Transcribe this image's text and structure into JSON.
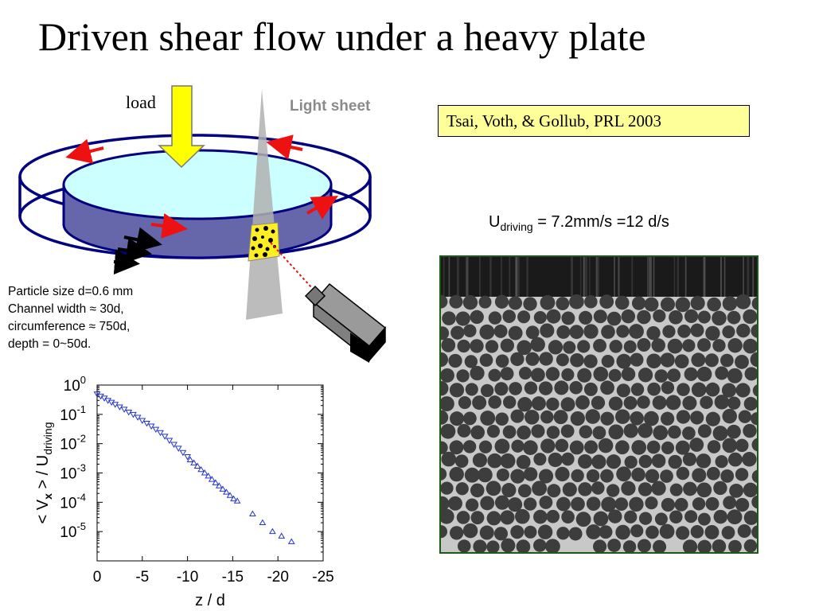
{
  "title": "Driven shear flow under a heavy plate",
  "apparatus": {
    "load_label": "load",
    "light_sheet_label": "Light sheet",
    "colors": {
      "plate": "#ccffff",
      "channel": "#6666aa",
      "ring": "#000080",
      "arrow_red": "#ee1111",
      "load_arrow": "#ffff00",
      "light_sheet": "#b0b0b0",
      "window": "#ffee22"
    }
  },
  "citation": "Tsai, Voth, & Gollub, PRL 2003",
  "driving": {
    "symbol": "U",
    "subscript": "driving",
    "value_text": " = 7.2mm/s =12 d/s"
  },
  "parameters": [
    "Particle size d=0.6 mm",
    "Channel width ≈ 30d,",
    "circumference ≈ 750d,",
    "depth = 0~50d."
  ],
  "micrograph": {
    "description_icon": "granular-packing-image"
  },
  "chart_data": {
    "type": "scatter",
    "xlabel": "z / d",
    "ylabel": "< V_x > / U_driving",
    "xlim": [
      0,
      -25
    ],
    "ylim": [
      1e-06,
      1
    ],
    "yscale": "log",
    "xticks": [
      "0",
      "-5",
      "-10",
      "-15",
      "-20",
      "-25"
    ],
    "yticks": [
      "10^0",
      "10^-1",
      "10^-2",
      "10^-3",
      "10^-4",
      "10^-5"
    ],
    "series": [
      {
        "marker": "triangle-down",
        "color": "#2233cc",
        "x": [
          0,
          -0.4,
          -0.8,
          -1.2,
          -1.6,
          -2.0,
          -2.5,
          -3.0,
          -3.5,
          -4.0,
          -4.5,
          -5.0,
          -5.5,
          -6.0,
          -6.5,
          -7.0,
          -7.5,
          -8.0,
          -8.5,
          -9.0,
          -9.5,
          -10.0
        ],
        "y": [
          0.5,
          0.42,
          0.36,
          0.3,
          0.26,
          0.22,
          0.18,
          0.15,
          0.12,
          0.1,
          0.08,
          0.062,
          0.05,
          0.04,
          0.031,
          0.024,
          0.018,
          0.013,
          0.0095,
          0.007,
          0.005,
          0.0036
        ]
      },
      {
        "marker": "triangle-up",
        "color": "#2233cc",
        "x": [
          -10.3,
          -10.7,
          -11.1,
          -11.5,
          -11.9,
          -12.3,
          -12.7,
          -13.1,
          -13.5,
          -13.9,
          -14.3,
          -14.7,
          -15.1,
          -15.5,
          -17.2,
          -18.3,
          -19.4,
          -20.4,
          -21.5
        ],
        "y": [
          0.0028,
          0.0022,
          0.0017,
          0.0013,
          0.001,
          0.00078,
          0.0006,
          0.00046,
          0.00036,
          0.00028,
          0.00022,
          0.00017,
          0.00013,
          0.00011,
          4e-05,
          2e-05,
          1e-05,
          7e-06,
          4.5e-06
        ]
      }
    ]
  }
}
